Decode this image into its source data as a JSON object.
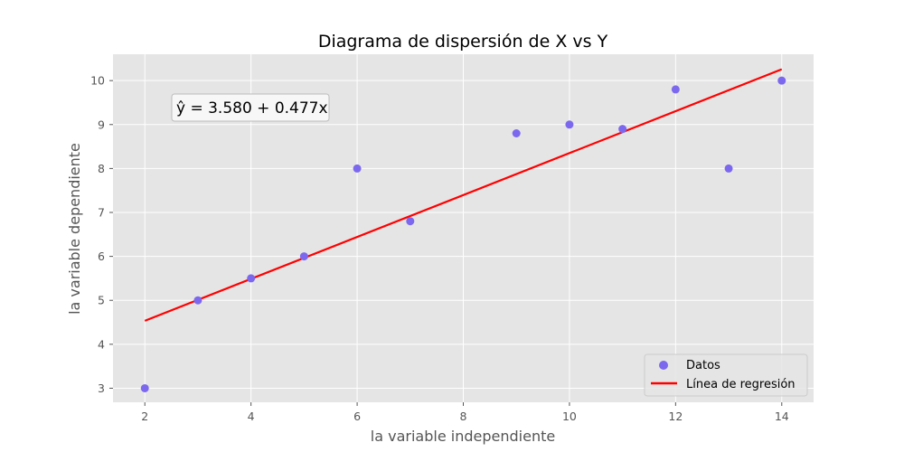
{
  "chart_data": {
    "type": "scatter",
    "title": "Diagrama de dispersión de X vs Y",
    "xlabel": "la variable independiente",
    "ylabel": "la variable dependiente",
    "xlim": [
      1.4,
      14.6
    ],
    "ylim": [
      2.68,
      10.6
    ],
    "xticks": [
      2,
      4,
      6,
      8,
      10,
      12,
      14
    ],
    "yticks": [
      3,
      4,
      5,
      6,
      7,
      8,
      9,
      10
    ],
    "grid": true,
    "series": [
      {
        "name": "Datos",
        "kind": "scatter",
        "color": "#7b68ee",
        "x": [
          2,
          3,
          4,
          5,
          6,
          7,
          9,
          10,
          11,
          12,
          13,
          14
        ],
        "y": [
          3.0,
          5.0,
          5.5,
          6.0,
          8.0,
          6.8,
          8.8,
          9.0,
          8.9,
          9.8,
          8.0,
          10.0
        ]
      },
      {
        "name": "Línea de regresión",
        "kind": "line",
        "color": "#ff0000",
        "intercept": 3.58,
        "slope": 0.477,
        "x_range": [
          2,
          14
        ]
      }
    ],
    "annotation": "ŷ = 3.580 + 0.477x",
    "legend_position": "bottom-right",
    "colors": {
      "background": "#e5e5e5",
      "grid": "#ffffff"
    }
  }
}
